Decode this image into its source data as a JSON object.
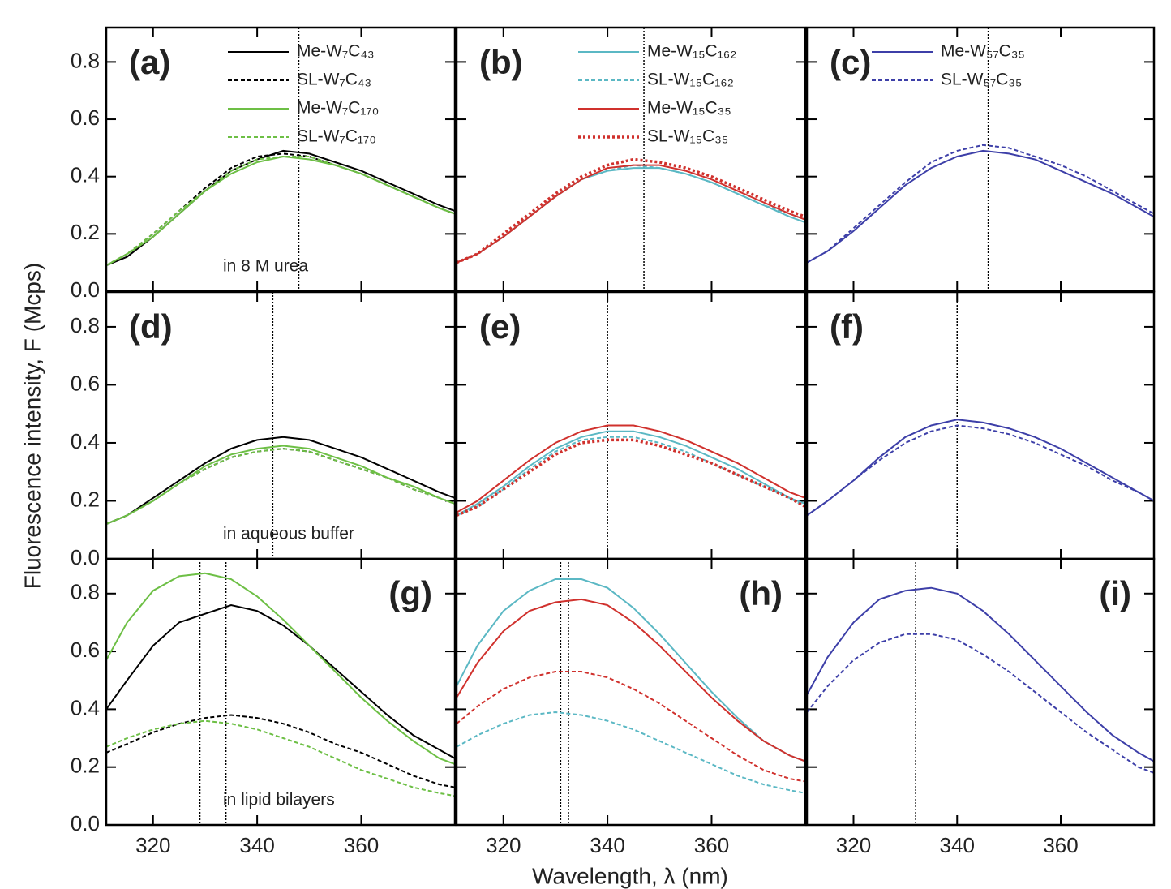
{
  "ylabel": "Fluorescence intensity, F (Mcps)",
  "xlabel": "Wavelength, λ (nm)",
  "chart_data": [
    {
      "type": "line",
      "label": "(a)",
      "label_corner": "top-left",
      "annotation": "in 8 M urea",
      "reference_lines": [
        348
      ],
      "x": [
        311,
        315,
        320,
        325,
        330,
        335,
        340,
        345,
        350,
        355,
        360,
        365,
        370,
        375,
        378
      ],
      "xlim": [
        311,
        378
      ],
      "xticks": [
        320,
        340,
        360
      ],
      "ylim": [
        0,
        0.92
      ],
      "yticks": [
        {
          "value": 0,
          "label": "0.0"
        },
        0.2,
        0.4,
        0.6,
        0.8
      ],
      "series": [
        {
          "name": "Me-W₇C₄₃",
          "color": "#000000",
          "dash": "solid",
          "values": [
            0.09,
            0.12,
            0.19,
            0.27,
            0.35,
            0.42,
            0.46,
            0.49,
            0.48,
            0.45,
            0.42,
            0.38,
            0.34,
            0.3,
            0.28
          ]
        },
        {
          "name": "SL-W₇C₄₃",
          "color": "#000000",
          "dash": "dashed",
          "values": [
            0.09,
            0.13,
            0.2,
            0.28,
            0.36,
            0.43,
            0.47,
            0.48,
            0.47,
            0.44,
            0.41,
            0.37,
            0.33,
            0.29,
            0.27
          ]
        },
        {
          "name": "Me-W₇C₁₇₀",
          "color": "#6dbf45",
          "dash": "solid",
          "values": [
            0.09,
            0.13,
            0.19,
            0.27,
            0.35,
            0.41,
            0.45,
            0.47,
            0.46,
            0.44,
            0.41,
            0.37,
            0.33,
            0.29,
            0.27
          ]
        },
        {
          "name": "SL-W₇C₁₇₀",
          "color": "#6dbf45",
          "dash": "dashed",
          "values": [
            0.09,
            0.13,
            0.2,
            0.28,
            0.35,
            0.42,
            0.46,
            0.47,
            0.47,
            0.44,
            0.41,
            0.37,
            0.33,
            0.29,
            0.27
          ]
        }
      ]
    },
    {
      "type": "line",
      "label": "(b)",
      "label_corner": "top-left",
      "reference_lines": [
        347
      ],
      "x": [
        311,
        315,
        320,
        325,
        330,
        335,
        340,
        345,
        350,
        355,
        360,
        365,
        370,
        375,
        378
      ],
      "xlim": [
        311,
        378
      ],
      "xticks": [
        320,
        340,
        360
      ],
      "ylim": [
        0,
        0.92
      ],
      "yticks": [
        {
          "value": 0,
          "label": "0.0"
        },
        0.2,
        0.4,
        0.6,
        0.8
      ],
      "series": [
        {
          "name": "Me-W₁₅C₁₆₂",
          "color": "#5bb8c4",
          "dash": "solid",
          "values": [
            0.1,
            0.13,
            0.19,
            0.26,
            0.33,
            0.39,
            0.42,
            0.43,
            0.43,
            0.41,
            0.38,
            0.34,
            0.3,
            0.26,
            0.24
          ]
        },
        {
          "name": "SL-W₁₅C₁₆₂",
          "color": "#5bb8c4",
          "dash": "dashed",
          "values": [
            0.1,
            0.13,
            0.19,
            0.26,
            0.33,
            0.39,
            0.42,
            0.44,
            0.43,
            0.41,
            0.38,
            0.34,
            0.3,
            0.27,
            0.25
          ]
        },
        {
          "name": "Me-W₁₅C₃₅",
          "color": "#d0312d",
          "dash": "solid",
          "values": [
            0.1,
            0.13,
            0.19,
            0.26,
            0.33,
            0.39,
            0.43,
            0.44,
            0.44,
            0.42,
            0.39,
            0.35,
            0.31,
            0.27,
            0.25
          ]
        },
        {
          "name": "SL-W₁₅C₃₅",
          "color": "#d0312d",
          "dash": "dotted",
          "values": [
            0.1,
            0.13,
            0.2,
            0.27,
            0.34,
            0.4,
            0.44,
            0.46,
            0.45,
            0.43,
            0.4,
            0.36,
            0.32,
            0.28,
            0.26
          ]
        }
      ]
    },
    {
      "type": "line",
      "label": "(c)",
      "label_corner": "top-left",
      "reference_lines": [
        346
      ],
      "x": [
        311,
        315,
        320,
        325,
        330,
        335,
        340,
        345,
        350,
        355,
        360,
        365,
        370,
        375,
        378
      ],
      "xlim": [
        311,
        378
      ],
      "xticks": [
        320,
        340,
        360
      ],
      "ylim": [
        0,
        0.92
      ],
      "yticks": [
        {
          "value": 0,
          "label": "0.0"
        },
        0.2,
        0.4,
        0.6,
        0.8
      ],
      "series": [
        {
          "name": "Me-W₅₇C₃₅",
          "color": "#3d3fa8",
          "dash": "solid",
          "values": [
            0.1,
            0.14,
            0.21,
            0.29,
            0.37,
            0.43,
            0.47,
            0.49,
            0.48,
            0.46,
            0.42,
            0.38,
            0.34,
            0.29,
            0.26
          ]
        },
        {
          "name": "SL-W₅₇C₃₅",
          "color": "#3d3fa8",
          "dash": "dashed",
          "values": [
            0.1,
            0.14,
            0.22,
            0.3,
            0.38,
            0.45,
            0.49,
            0.51,
            0.5,
            0.47,
            0.44,
            0.4,
            0.35,
            0.3,
            0.27
          ]
        }
      ]
    },
    {
      "type": "line",
      "label": "(d)",
      "label_corner": "top-left",
      "annotation": "in aqueous buffer",
      "reference_lines": [
        343
      ],
      "x": [
        311,
        315,
        320,
        325,
        330,
        335,
        340,
        345,
        350,
        355,
        360,
        365,
        370,
        375,
        378
      ],
      "xlim": [
        311,
        378
      ],
      "xticks": [
        320,
        340,
        360
      ],
      "ylim": [
        0,
        0.92
      ],
      "yticks": [
        {
          "value": 0,
          "label": "0.0"
        },
        0.2,
        0.4,
        0.6,
        0.8
      ],
      "series": [
        {
          "color": "#000000",
          "dash": "solid",
          "values": [
            0.12,
            0.15,
            0.21,
            0.27,
            0.33,
            0.38,
            0.41,
            0.42,
            0.41,
            0.38,
            0.35,
            0.31,
            0.27,
            0.23,
            0.21
          ]
        },
        {
          "color": "#000000",
          "dash": "dashed",
          "values": [
            0.12,
            0.15,
            0.2,
            0.26,
            0.31,
            0.35,
            0.37,
            0.38,
            0.37,
            0.34,
            0.31,
            0.28,
            0.24,
            0.21,
            0.19
          ]
        },
        {
          "color": "#6dbf45",
          "dash": "solid",
          "values": [
            0.12,
            0.15,
            0.2,
            0.26,
            0.32,
            0.36,
            0.38,
            0.39,
            0.38,
            0.35,
            0.32,
            0.28,
            0.25,
            0.21,
            0.19
          ]
        },
        {
          "color": "#6dbf45",
          "dash": "dashed",
          "values": [
            0.12,
            0.15,
            0.2,
            0.26,
            0.31,
            0.35,
            0.37,
            0.38,
            0.37,
            0.34,
            0.31,
            0.28,
            0.24,
            0.21,
            0.19
          ]
        }
      ]
    },
    {
      "type": "line",
      "label": "(e)",
      "label_corner": "top-left",
      "reference_lines": [
        340
      ],
      "x": [
        311,
        315,
        320,
        325,
        330,
        335,
        340,
        345,
        350,
        355,
        360,
        365,
        370,
        375,
        378
      ],
      "xlim": [
        311,
        378
      ],
      "xticks": [
        320,
        340,
        360
      ],
      "ylim": [
        0,
        0.92
      ],
      "yticks": [
        {
          "value": 0,
          "label": "0.0"
        },
        0.2,
        0.4,
        0.6,
        0.8
      ],
      "series": [
        {
          "color": "#5bb8c4",
          "dash": "solid",
          "values": [
            0.15,
            0.19,
            0.25,
            0.32,
            0.38,
            0.42,
            0.44,
            0.44,
            0.42,
            0.39,
            0.35,
            0.31,
            0.26,
            0.21,
            0.19
          ]
        },
        {
          "color": "#5bb8c4",
          "dash": "dashed",
          "values": [
            0.15,
            0.18,
            0.24,
            0.31,
            0.37,
            0.41,
            0.42,
            0.42,
            0.4,
            0.37,
            0.33,
            0.29,
            0.25,
            0.21,
            0.18
          ]
        },
        {
          "color": "#d0312d",
          "dash": "solid",
          "values": [
            0.16,
            0.2,
            0.27,
            0.34,
            0.4,
            0.44,
            0.46,
            0.46,
            0.44,
            0.41,
            0.37,
            0.33,
            0.28,
            0.23,
            0.21
          ]
        },
        {
          "color": "#d0312d",
          "dash": "dotted",
          "values": [
            0.15,
            0.18,
            0.24,
            0.3,
            0.36,
            0.4,
            0.41,
            0.41,
            0.39,
            0.36,
            0.33,
            0.29,
            0.25,
            0.21,
            0.18
          ]
        }
      ]
    },
    {
      "type": "line",
      "label": "(f)",
      "label_corner": "top-left",
      "reference_lines": [
        340
      ],
      "x": [
        311,
        315,
        320,
        325,
        330,
        335,
        340,
        345,
        350,
        355,
        360,
        365,
        370,
        375,
        378
      ],
      "xlim": [
        311,
        378
      ],
      "xticks": [
        320,
        340,
        360
      ],
      "ylim": [
        0,
        0.92
      ],
      "yticks": [
        {
          "value": 0,
          "label": "0.0"
        },
        0.2,
        0.4,
        0.6,
        0.8
      ],
      "series": [
        {
          "color": "#3d3fa8",
          "dash": "solid",
          "values": [
            0.15,
            0.2,
            0.27,
            0.35,
            0.42,
            0.46,
            0.48,
            0.47,
            0.45,
            0.42,
            0.38,
            0.33,
            0.28,
            0.23,
            0.2
          ]
        },
        {
          "color": "#3d3fa8",
          "dash": "dashed",
          "values": [
            0.15,
            0.2,
            0.27,
            0.34,
            0.4,
            0.44,
            0.46,
            0.45,
            0.43,
            0.4,
            0.36,
            0.32,
            0.27,
            0.23,
            0.2
          ]
        }
      ]
    },
    {
      "type": "line",
      "label": "(g)",
      "label_corner": "top-right",
      "annotation": "in lipid bilayers",
      "reference_lines": [
        329,
        334
      ],
      "x": [
        311,
        315,
        320,
        325,
        330,
        335,
        340,
        345,
        350,
        355,
        360,
        365,
        370,
        375,
        378
      ],
      "xlim": [
        311,
        378
      ],
      "xticks": [
        320,
        340,
        360
      ],
      "ylim": [
        0,
        0.92
      ],
      "yticks": [
        {
          "value": 0,
          "label": "0.0"
        },
        0.2,
        0.4,
        0.6,
        0.8
      ],
      "series": [
        {
          "color": "#000000",
          "dash": "solid",
          "values": [
            0.4,
            0.5,
            0.62,
            0.7,
            0.73,
            0.76,
            0.74,
            0.69,
            0.62,
            0.54,
            0.46,
            0.38,
            0.31,
            0.26,
            0.23
          ]
        },
        {
          "color": "#000000",
          "dash": "dashed",
          "values": [
            0.25,
            0.28,
            0.32,
            0.35,
            0.37,
            0.38,
            0.37,
            0.35,
            0.32,
            0.28,
            0.25,
            0.21,
            0.17,
            0.14,
            0.13
          ]
        },
        {
          "color": "#6dbf45",
          "dash": "solid",
          "values": [
            0.57,
            0.7,
            0.81,
            0.86,
            0.87,
            0.85,
            0.79,
            0.71,
            0.62,
            0.53,
            0.44,
            0.36,
            0.29,
            0.23,
            0.21
          ]
        },
        {
          "color": "#6dbf45",
          "dash": "dashed",
          "values": [
            0.27,
            0.3,
            0.33,
            0.35,
            0.36,
            0.35,
            0.33,
            0.3,
            0.27,
            0.23,
            0.19,
            0.16,
            0.13,
            0.11,
            0.1
          ]
        }
      ]
    },
    {
      "type": "line",
      "label": "(h)",
      "label_corner": "top-right",
      "reference_lines": [
        331,
        332.5
      ],
      "x": [
        311,
        315,
        320,
        325,
        330,
        335,
        340,
        345,
        350,
        355,
        360,
        365,
        370,
        375,
        378
      ],
      "xlim": [
        311,
        378
      ],
      "xticks": [
        320,
        340,
        360
      ],
      "ylim": [
        0,
        0.92
      ],
      "yticks": [
        {
          "value": 0,
          "label": "0.0"
        },
        0.2,
        0.4,
        0.6,
        0.8
      ],
      "series": [
        {
          "color": "#5bb8c4",
          "dash": "solid",
          "values": [
            0.48,
            0.62,
            0.74,
            0.81,
            0.85,
            0.85,
            0.82,
            0.75,
            0.66,
            0.56,
            0.46,
            0.37,
            0.29,
            0.24,
            0.22
          ]
        },
        {
          "color": "#5bb8c4",
          "dash": "dashed",
          "values": [
            0.27,
            0.31,
            0.35,
            0.38,
            0.39,
            0.38,
            0.36,
            0.33,
            0.29,
            0.25,
            0.21,
            0.17,
            0.14,
            0.12,
            0.11
          ]
        },
        {
          "color": "#d0312d",
          "dash": "solid",
          "values": [
            0.44,
            0.56,
            0.67,
            0.74,
            0.77,
            0.78,
            0.76,
            0.7,
            0.62,
            0.53,
            0.44,
            0.36,
            0.29,
            0.24,
            0.22
          ]
        },
        {
          "color": "#d0312d",
          "dash": "dashed",
          "values": [
            0.35,
            0.41,
            0.47,
            0.51,
            0.53,
            0.53,
            0.51,
            0.47,
            0.42,
            0.36,
            0.3,
            0.24,
            0.19,
            0.16,
            0.15
          ]
        }
      ]
    },
    {
      "type": "line",
      "label": "(i)",
      "label_corner": "top-right",
      "reference_lines": [
        332
      ],
      "x": [
        311,
        315,
        320,
        325,
        330,
        335,
        340,
        345,
        350,
        355,
        360,
        365,
        370,
        375,
        378
      ],
      "xlim": [
        311,
        378
      ],
      "xticks": [
        320,
        340,
        360
      ],
      "ylim": [
        0,
        0.92
      ],
      "yticks": [
        {
          "value": 0,
          "label": "0.0"
        },
        0.2,
        0.4,
        0.6,
        0.8
      ],
      "series": [
        {
          "color": "#3d3fa8",
          "dash": "solid",
          "values": [
            0.45,
            0.58,
            0.7,
            0.78,
            0.81,
            0.82,
            0.8,
            0.74,
            0.66,
            0.57,
            0.48,
            0.39,
            0.31,
            0.25,
            0.22
          ]
        },
        {
          "color": "#3d3fa8",
          "dash": "dashed",
          "values": [
            0.39,
            0.48,
            0.57,
            0.63,
            0.66,
            0.66,
            0.64,
            0.59,
            0.53,
            0.46,
            0.39,
            0.32,
            0.26,
            0.2,
            0.18
          ]
        }
      ]
    }
  ]
}
